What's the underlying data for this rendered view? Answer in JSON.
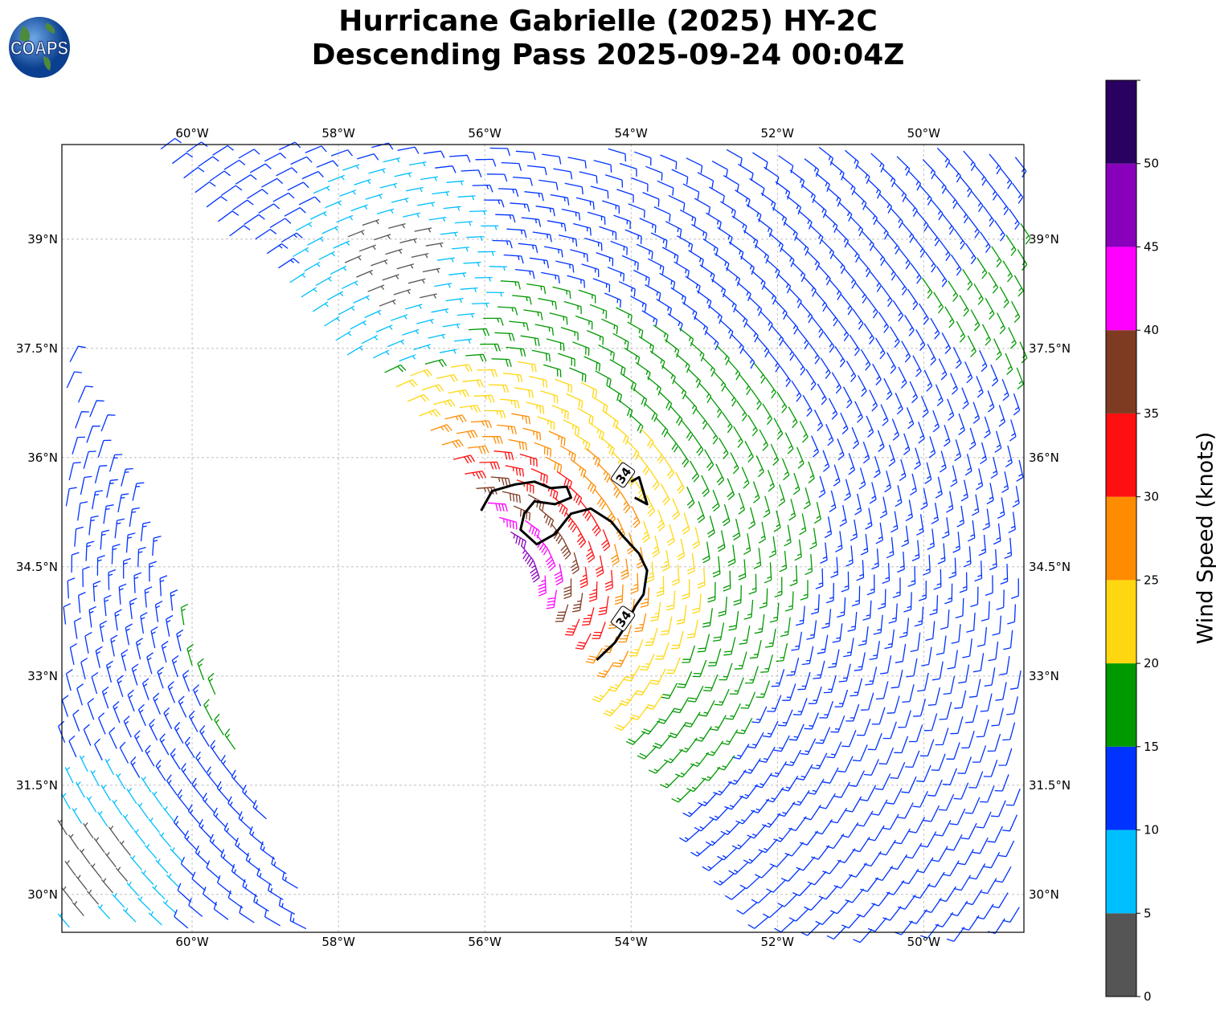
{
  "title": {
    "line1": "Hurricane Gabrielle (2025) HY-2C",
    "line2": "Descending Pass 2025-09-24 00:04Z"
  },
  "logo": {
    "text": "COAPS"
  },
  "map": {
    "lon_range": [
      -61.78,
      -48.63
    ],
    "lat_range": [
      29.48,
      40.3
    ],
    "lon_ticks": [
      {
        "value": -60,
        "label": "60°W"
      },
      {
        "value": -58,
        "label": "58°W"
      },
      {
        "value": -56,
        "label": "56°W"
      },
      {
        "value": -54,
        "label": "54°W"
      },
      {
        "value": -52,
        "label": "52°W"
      },
      {
        "value": -50,
        "label": "50°W"
      }
    ],
    "lat_ticks": [
      {
        "value": 39,
        "label": "39°N"
      },
      {
        "value": 37.5,
        "label": "37.5°N"
      },
      {
        "value": 36,
        "label": "36°N"
      },
      {
        "value": 34.5,
        "label": "34.5°N"
      },
      {
        "value": 33,
        "label": "33°N"
      },
      {
        "value": 31.5,
        "label": "31.5°N"
      },
      {
        "value": 30,
        "label": "30°N"
      }
    ]
  },
  "chart_data": {
    "type": "wind-barb-map",
    "variable": "Wind Speed (knots)",
    "swaths": [
      [
        [
          -60.76,
          40.3
        ],
        [
          -58.01,
          37.54
        ],
        [
          -56.36,
          35.78
        ],
        [
          -54.27,
          32.8
        ],
        [
          -52.24,
          29.48
        ],
        [
          -48.63,
          29.48
        ],
        [
          -48.63,
          40.3
        ]
      ],
      [
        [
          -61.78,
          37.71
        ],
        [
          -58.29,
          29.48
        ],
        [
          -61.78,
          29.48
        ]
      ]
    ],
    "vortex": {
      "center_lon": -56.03,
      "center_lat": 34.34,
      "max_wind_kt": 48,
      "background_kt": 10
    },
    "contour": {
      "level_label": "34",
      "lines": [
        [
          [
            -56.05,
            35.27
          ],
          [
            -55.9,
            35.54
          ],
          [
            -55.59,
            35.63
          ],
          [
            -55.32,
            35.67
          ],
          [
            -55.1,
            35.58
          ],
          [
            -54.88,
            35.6
          ],
          [
            -54.82,
            35.45
          ],
          [
            -55.04,
            35.36
          ],
          [
            -55.32,
            35.4
          ],
          [
            -55.46,
            35.23
          ],
          [
            -55.51,
            35.01
          ],
          [
            -55.29,
            34.81
          ],
          [
            -55.04,
            34.95
          ],
          [
            -54.82,
            35.23
          ],
          [
            -54.55,
            35.3
          ],
          [
            -54.27,
            35.12
          ],
          [
            -54.11,
            34.92
          ],
          [
            -53.89,
            34.68
          ],
          [
            -53.78,
            34.45
          ],
          [
            -53.83,
            34.12
          ],
          [
            -53.94,
            33.96
          ],
          [
            -54.08,
            33.68
          ],
          [
            -54.22,
            33.46
          ],
          [
            -54.47,
            33.22
          ]
        ],
        [
          [
            -54.0,
            35.67
          ],
          [
            -53.89,
            35.73
          ],
          [
            -53.78,
            35.36
          ],
          [
            -53.95,
            35.45
          ]
        ]
      ],
      "labels": [
        [
          -54.11,
          35.76
        ],
        [
          -54.11,
          33.79
        ]
      ]
    },
    "colorbar": {
      "label": "Wind Speed (knots)",
      "range": [
        0,
        55
      ],
      "bounds": [
        0,
        5,
        10,
        15,
        20,
        25,
        30,
        35,
        40,
        45,
        50,
        55
      ],
      "colors": [
        "#555555",
        "#00bfff",
        "#0033ff",
        "#009900",
        "#ffd710",
        "#ff8c00",
        "#ff1010",
        "#7f3a22",
        "#ff00ff",
        "#8800bb",
        "#2a0060"
      ],
      "tick_labels": [
        "0",
        "5",
        "10",
        "15",
        "20",
        "25",
        "30",
        "35",
        "40",
        "45",
        "50"
      ]
    }
  }
}
